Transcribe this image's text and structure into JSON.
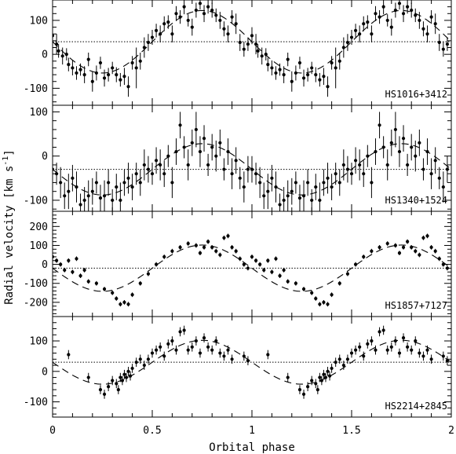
{
  "chart_data": [
    {
      "type": "scatter",
      "panel_label": "HS1016+3412",
      "x_range": [
        0,
        2
      ],
      "ylim": [
        -150,
        160
      ],
      "yticks": [
        -100,
        0,
        100
      ],
      "gamma": 37,
      "model": {
        "gamma": 37,
        "K": 92,
        "phase_offset": 0.0
      },
      "error_bars": true,
      "points": [
        [
          0.0,
          55,
          25
        ],
        [
          0.02,
          30,
          30
        ],
        [
          0.03,
          10,
          20
        ],
        [
          0.05,
          -5,
          25
        ],
        [
          0.07,
          0,
          18
        ],
        [
          0.08,
          -30,
          20
        ],
        [
          0.1,
          -40,
          22
        ],
        [
          0.12,
          -55,
          20
        ],
        [
          0.14,
          -45,
          18
        ],
        [
          0.16,
          -60,
          25
        ],
        [
          0.18,
          -15,
          20
        ],
        [
          0.2,
          -80,
          30
        ],
        [
          0.22,
          -55,
          22
        ],
        [
          0.24,
          -25,
          18
        ],
        [
          0.26,
          -70,
          25
        ],
        [
          0.28,
          -60,
          20
        ],
        [
          0.3,
          -40,
          18
        ],
        [
          0.32,
          -60,
          22
        ],
        [
          0.34,
          -75,
          20
        ],
        [
          0.36,
          -65,
          25
        ],
        [
          0.38,
          -95,
          30
        ],
        [
          0.4,
          -25,
          20
        ],
        [
          0.42,
          -40,
          60
        ],
        [
          0.44,
          -20,
          25
        ],
        [
          0.46,
          20,
          30
        ],
        [
          0.48,
          35,
          25
        ],
        [
          0.5,
          50,
          22
        ],
        [
          0.52,
          70,
          20
        ],
        [
          0.54,
          60,
          25
        ],
        [
          0.56,
          90,
          22
        ],
        [
          0.58,
          95,
          20
        ],
        [
          0.6,
          60,
          25
        ],
        [
          0.62,
          120,
          22
        ],
        [
          0.64,
          110,
          20
        ],
        [
          0.66,
          140,
          22
        ],
        [
          0.68,
          100,
          18
        ],
        [
          0.7,
          80,
          25
        ],
        [
          0.72,
          130,
          22
        ],
        [
          0.74,
          150,
          18
        ],
        [
          0.76,
          120,
          25
        ],
        [
          0.78,
          140,
          20
        ],
        [
          0.8,
          130,
          22
        ],
        [
          0.82,
          115,
          20
        ],
        [
          0.84,
          100,
          25
        ],
        [
          0.86,
          75,
          22
        ],
        [
          0.88,
          60,
          25
        ],
        [
          0.9,
          110,
          20
        ],
        [
          0.92,
          90,
          30
        ],
        [
          0.94,
          35,
          25
        ],
        [
          0.96,
          15,
          22
        ],
        [
          0.98,
          30,
          20
        ]
      ]
    },
    {
      "type": "scatter",
      "panel_label": "HS1340+1524",
      "x_range": [
        0,
        2
      ],
      "ylim": [
        -125,
        115
      ],
      "yticks": [
        -100,
        0,
        100
      ],
      "gamma": -30,
      "model": {
        "gamma": -30,
        "K": 58,
        "phase_offset": 0.0
      },
      "error_bars": true,
      "points": [
        [
          0.0,
          -30,
          30
        ],
        [
          0.02,
          -40,
          25
        ],
        [
          0.04,
          -60,
          35
        ],
        [
          0.06,
          -90,
          30
        ],
        [
          0.08,
          -80,
          40
        ],
        [
          0.1,
          -50,
          30
        ],
        [
          0.12,
          -70,
          35
        ],
        [
          0.14,
          -110,
          25
        ],
        [
          0.16,
          -100,
          30
        ],
        [
          0.18,
          -90,
          35
        ],
        [
          0.2,
          -80,
          30
        ],
        [
          0.22,
          -60,
          25
        ],
        [
          0.24,
          -95,
          30
        ],
        [
          0.26,
          -90,
          35
        ],
        [
          0.28,
          -60,
          30
        ],
        [
          0.3,
          -100,
          25
        ],
        [
          0.32,
          -70,
          30
        ],
        [
          0.34,
          -100,
          40
        ],
        [
          0.36,
          -60,
          30
        ],
        [
          0.38,
          -50,
          35
        ],
        [
          0.4,
          -70,
          30
        ],
        [
          0.42,
          -40,
          25
        ],
        [
          0.44,
          -60,
          30
        ],
        [
          0.46,
          -20,
          35
        ],
        [
          0.48,
          -30,
          30
        ],
        [
          0.5,
          -40,
          25
        ],
        [
          0.52,
          -10,
          30
        ],
        [
          0.54,
          -20,
          35
        ],
        [
          0.56,
          -40,
          30
        ],
        [
          0.58,
          0,
          25
        ],
        [
          0.6,
          -60,
          35
        ],
        [
          0.62,
          10,
          30
        ],
        [
          0.64,
          70,
          30
        ],
        [
          0.66,
          20,
          25
        ],
        [
          0.68,
          -20,
          35
        ],
        [
          0.7,
          30,
          30
        ],
        [
          0.72,
          60,
          40
        ],
        [
          0.74,
          10,
          35
        ],
        [
          0.76,
          40,
          30
        ],
        [
          0.78,
          -20,
          25
        ],
        [
          0.8,
          20,
          30
        ],
        [
          0.82,
          0,
          35
        ],
        [
          0.84,
          30,
          30
        ],
        [
          0.86,
          -30,
          25
        ],
        [
          0.88,
          10,
          30
        ],
        [
          0.9,
          -40,
          35
        ],
        [
          0.92,
          -10,
          30
        ],
        [
          0.94,
          -50,
          25
        ],
        [
          0.96,
          -70,
          35
        ],
        [
          0.98,
          -30,
          30
        ]
      ]
    },
    {
      "type": "scatter",
      "panel_label": "HS1857+7127",
      "x_range": [
        0,
        2
      ],
      "ylim": [
        -275,
        280
      ],
      "yticks": [
        -200,
        -100,
        0,
        100,
        200
      ],
      "gamma": -20,
      "model": {
        "gamma": -20,
        "K": 122,
        "phase_offset": 0.0
      },
      "error_bars": true,
      "points": [
        [
          0.0,
          40,
          12
        ],
        [
          0.02,
          20,
          12
        ],
        [
          0.04,
          0,
          12
        ],
        [
          0.06,
          -30,
          12
        ],
        [
          0.08,
          20,
          12
        ],
        [
          0.1,
          -40,
          12
        ],
        [
          0.12,
          30,
          12
        ],
        [
          0.14,
          -60,
          12
        ],
        [
          0.16,
          -30,
          12
        ],
        [
          0.18,
          -90,
          12
        ],
        [
          0.22,
          -100,
          12
        ],
        [
          0.26,
          -130,
          12
        ],
        [
          0.3,
          -150,
          12
        ],
        [
          0.32,
          -180,
          12
        ],
        [
          0.34,
          -210,
          12
        ],
        [
          0.36,
          -200,
          12
        ],
        [
          0.38,
          -210,
          12
        ],
        [
          0.4,
          -160,
          12
        ],
        [
          0.44,
          -100,
          12
        ],
        [
          0.48,
          -50,
          12
        ],
        [
          0.52,
          0,
          12
        ],
        [
          0.56,
          40,
          12
        ],
        [
          0.6,
          70,
          12
        ],
        [
          0.64,
          90,
          12
        ],
        [
          0.68,
          110,
          12
        ],
        [
          0.72,
          100,
          12
        ],
        [
          0.74,
          60,
          12
        ],
        [
          0.76,
          90,
          12
        ],
        [
          0.78,
          120,
          12
        ],
        [
          0.8,
          90,
          12
        ],
        [
          0.82,
          70,
          12
        ],
        [
          0.84,
          50,
          12
        ],
        [
          0.86,
          140,
          12
        ],
        [
          0.88,
          150,
          12
        ],
        [
          0.9,
          90,
          12
        ],
        [
          0.92,
          70,
          12
        ],
        [
          0.94,
          30,
          12
        ],
        [
          0.96,
          0,
          12
        ],
        [
          0.98,
          -20,
          12
        ]
      ]
    },
    {
      "type": "scatter",
      "panel_label": "HS2214+2845",
      "x_range": [
        0,
        2
      ],
      "ylim": [
        -150,
        180
      ],
      "yticks": [
        -100,
        0,
        100
      ],
      "gamma": 30,
      "model": {
        "gamma": 30,
        "K": 72,
        "phase_offset": 0.0
      },
      "error_bars": true,
      "points": [
        [
          0.08,
          55,
          15
        ],
        [
          0.18,
          -20,
          15
        ],
        [
          0.24,
          -60,
          15
        ],
        [
          0.26,
          -75,
          15
        ],
        [
          0.28,
          -50,
          15
        ],
        [
          0.3,
          -30,
          15
        ],
        [
          0.32,
          -40,
          15
        ],
        [
          0.33,
          -60,
          15
        ],
        [
          0.34,
          -20,
          15
        ],
        [
          0.35,
          -30,
          15
        ],
        [
          0.36,
          -10,
          15
        ],
        [
          0.37,
          -20,
          15
        ],
        [
          0.38,
          0,
          15
        ],
        [
          0.39,
          -15,
          15
        ],
        [
          0.4,
          10,
          15
        ],
        [
          0.42,
          30,
          15
        ],
        [
          0.44,
          40,
          15
        ],
        [
          0.46,
          20,
          15
        ],
        [
          0.48,
          40,
          15
        ],
        [
          0.5,
          60,
          15
        ],
        [
          0.52,
          70,
          15
        ],
        [
          0.54,
          80,
          15
        ],
        [
          0.56,
          50,
          15
        ],
        [
          0.58,
          90,
          15
        ],
        [
          0.6,
          100,
          15
        ],
        [
          0.62,
          70,
          15
        ],
        [
          0.64,
          130,
          15
        ],
        [
          0.66,
          135,
          15
        ],
        [
          0.68,
          70,
          15
        ],
        [
          0.7,
          80,
          15
        ],
        [
          0.72,
          100,
          15
        ],
        [
          0.74,
          60,
          15
        ],
        [
          0.76,
          110,
          15
        ],
        [
          0.78,
          80,
          15
        ],
        [
          0.8,
          70,
          15
        ],
        [
          0.82,
          100,
          15
        ],
        [
          0.84,
          60,
          15
        ],
        [
          0.86,
          50,
          15
        ],
        [
          0.88,
          70,
          15
        ],
        [
          0.9,
          40,
          15
        ],
        [
          0.96,
          50,
          15
        ],
        [
          0.98,
          35,
          15
        ]
      ]
    }
  ],
  "axes": {
    "xlabel": "Orbital phase",
    "ylabel_main": "Radial velocity [km s",
    "ylabel_sup": "-1",
    "ylabel_close": "]",
    "xticks": [
      0,
      0.5,
      1,
      1.5,
      2
    ],
    "xtick_labels": [
      "0",
      "0.5",
      "1",
      "1.5",
      "2"
    ]
  }
}
